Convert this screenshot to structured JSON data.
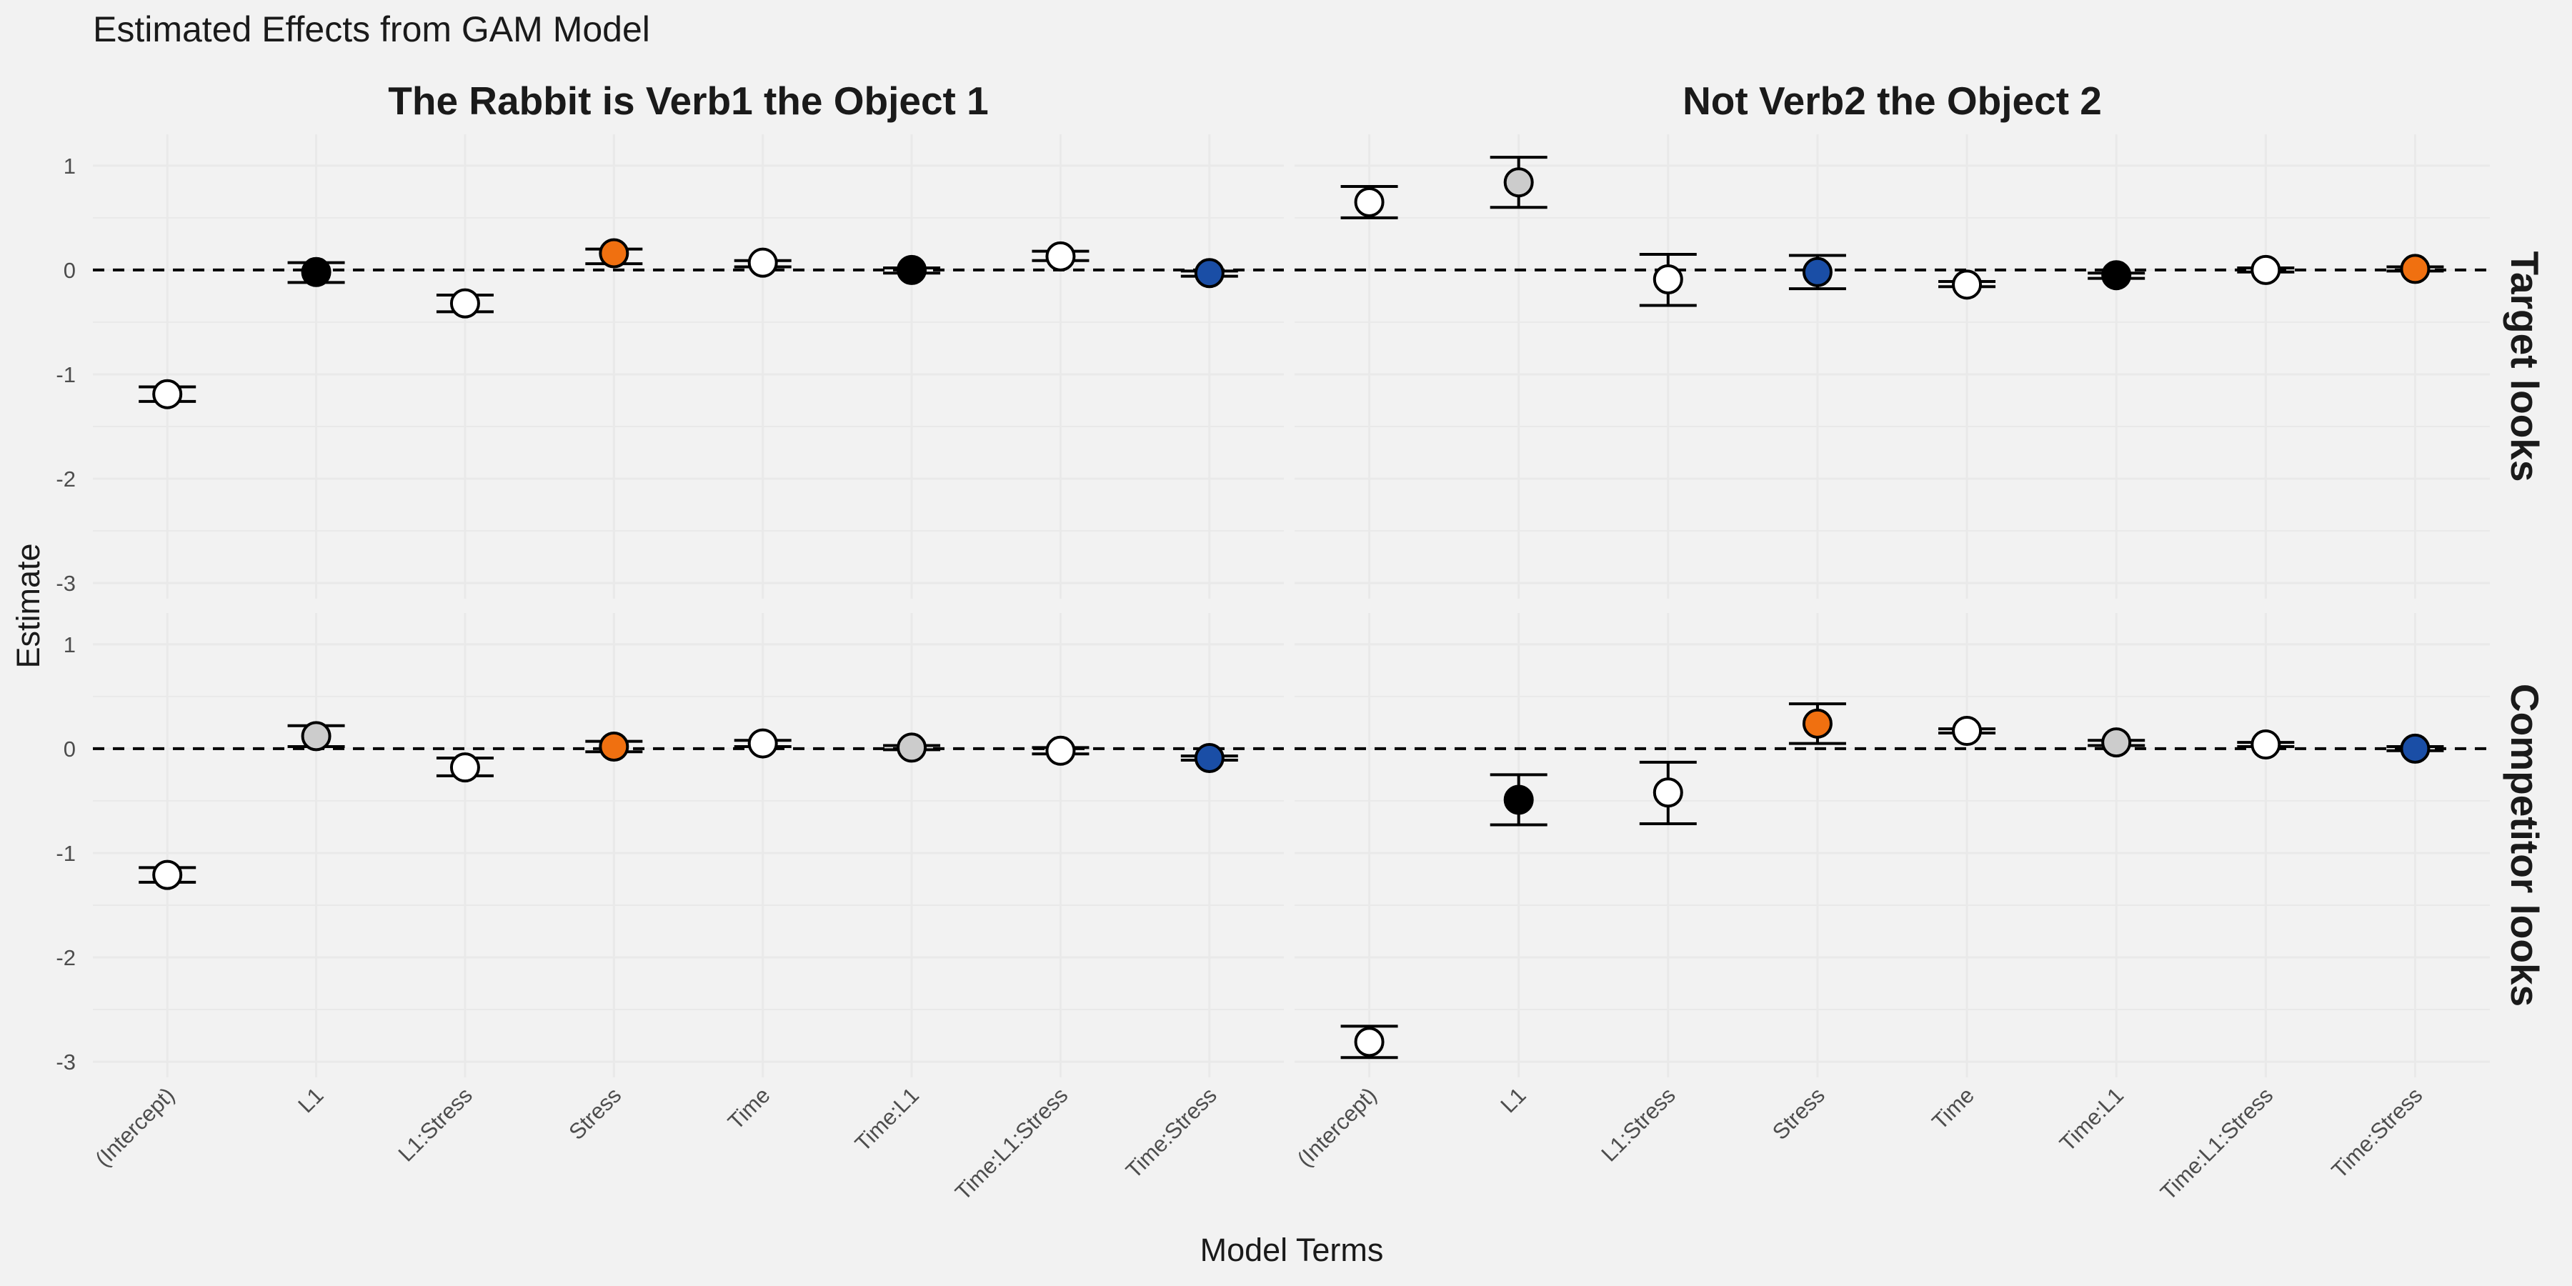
{
  "chart_data": {
    "type": "scatter",
    "subtype": "point-estimate with error bars, faceted 2x2",
    "title": "Estimated Effects from GAM Model",
    "xlabel": "Model Terms",
    "ylabel": "Estimate",
    "ylim": [
      -3.15,
      1.3
    ],
    "yticks": [
      1,
      0,
      -1,
      -2,
      -3
    ],
    "reference_line": 0,
    "grid": true,
    "legend": "none",
    "terms": [
      "(Intercept)",
      "L1",
      "L1:Stress",
      "Stress",
      "Time",
      "Time:L1",
      "Time:L1:Stress",
      "Time:Stress"
    ],
    "columns": [
      "The Rabbit is Verb1 the Object 1",
      "Not Verb2 the Object 2"
    ],
    "rows": [
      "Target looks",
      "Competitor looks"
    ],
    "colors": {
      "white": "#ffffff",
      "black": "#000000",
      "grey": "#cccccc",
      "orange": "#f07010",
      "blue": "#1a4ea6",
      "background": "#f2f2f2",
      "grid": "#e9e9e9"
    },
    "panels": [
      {
        "row": "Target looks",
        "column": "The Rabbit is Verb1 the Object 1",
        "estimate": [
          -1.19,
          -0.02,
          -0.32,
          0.16,
          0.07,
          0.0,
          0.13,
          -0.03
        ],
        "lower": [
          -1.26,
          -0.12,
          -0.4,
          0.06,
          0.03,
          -0.03,
          0.09,
          -0.06
        ],
        "upper": [
          -1.12,
          0.07,
          -0.24,
          0.2,
          0.09,
          0.02,
          0.18,
          -0.01
        ],
        "fill": [
          "white",
          "black",
          "white",
          "orange",
          "white",
          "black",
          "white",
          "blue"
        ]
      },
      {
        "row": "Target looks",
        "column": "Not Verb2 the Object 2",
        "estimate": [
          0.65,
          0.84,
          -0.09,
          -0.02,
          -0.14,
          -0.05,
          0.0,
          0.01
        ],
        "lower": [
          0.5,
          0.6,
          -0.34,
          -0.18,
          -0.16,
          -0.08,
          -0.02,
          -0.01
        ],
        "upper": [
          0.8,
          1.08,
          0.15,
          0.14,
          -0.11,
          -0.03,
          0.02,
          0.03
        ],
        "fill": [
          "white",
          "grey",
          "white",
          "blue",
          "white",
          "black",
          "white",
          "orange"
        ]
      },
      {
        "row": "Competitor looks",
        "column": "The Rabbit is Verb1 the Object 1",
        "estimate": [
          -1.21,
          0.12,
          -0.18,
          0.02,
          0.05,
          0.01,
          -0.02,
          -0.09
        ],
        "lower": [
          -1.28,
          0.02,
          -0.26,
          -0.03,
          0.02,
          -0.01,
          -0.05,
          -0.11
        ],
        "upper": [
          -1.14,
          0.22,
          -0.09,
          0.07,
          0.08,
          0.03,
          0.01,
          -0.07
        ],
        "fill": [
          "white",
          "grey",
          "white",
          "orange",
          "white",
          "grey",
          "white",
          "blue"
        ]
      },
      {
        "row": "Competitor looks",
        "column": "Not Verb2 the Object 2",
        "estimate": [
          -2.81,
          -0.49,
          -0.42,
          0.24,
          0.17,
          0.06,
          0.04,
          0.0
        ],
        "lower": [
          -2.96,
          -0.73,
          -0.72,
          0.05,
          0.15,
          0.03,
          0.02,
          -0.02
        ],
        "upper": [
          -2.66,
          -0.25,
          -0.13,
          0.43,
          0.19,
          0.08,
          0.06,
          0.02
        ],
        "fill": [
          "white",
          "black",
          "white",
          "orange",
          "white",
          "grey",
          "white",
          "blue"
        ]
      }
    ]
  }
}
